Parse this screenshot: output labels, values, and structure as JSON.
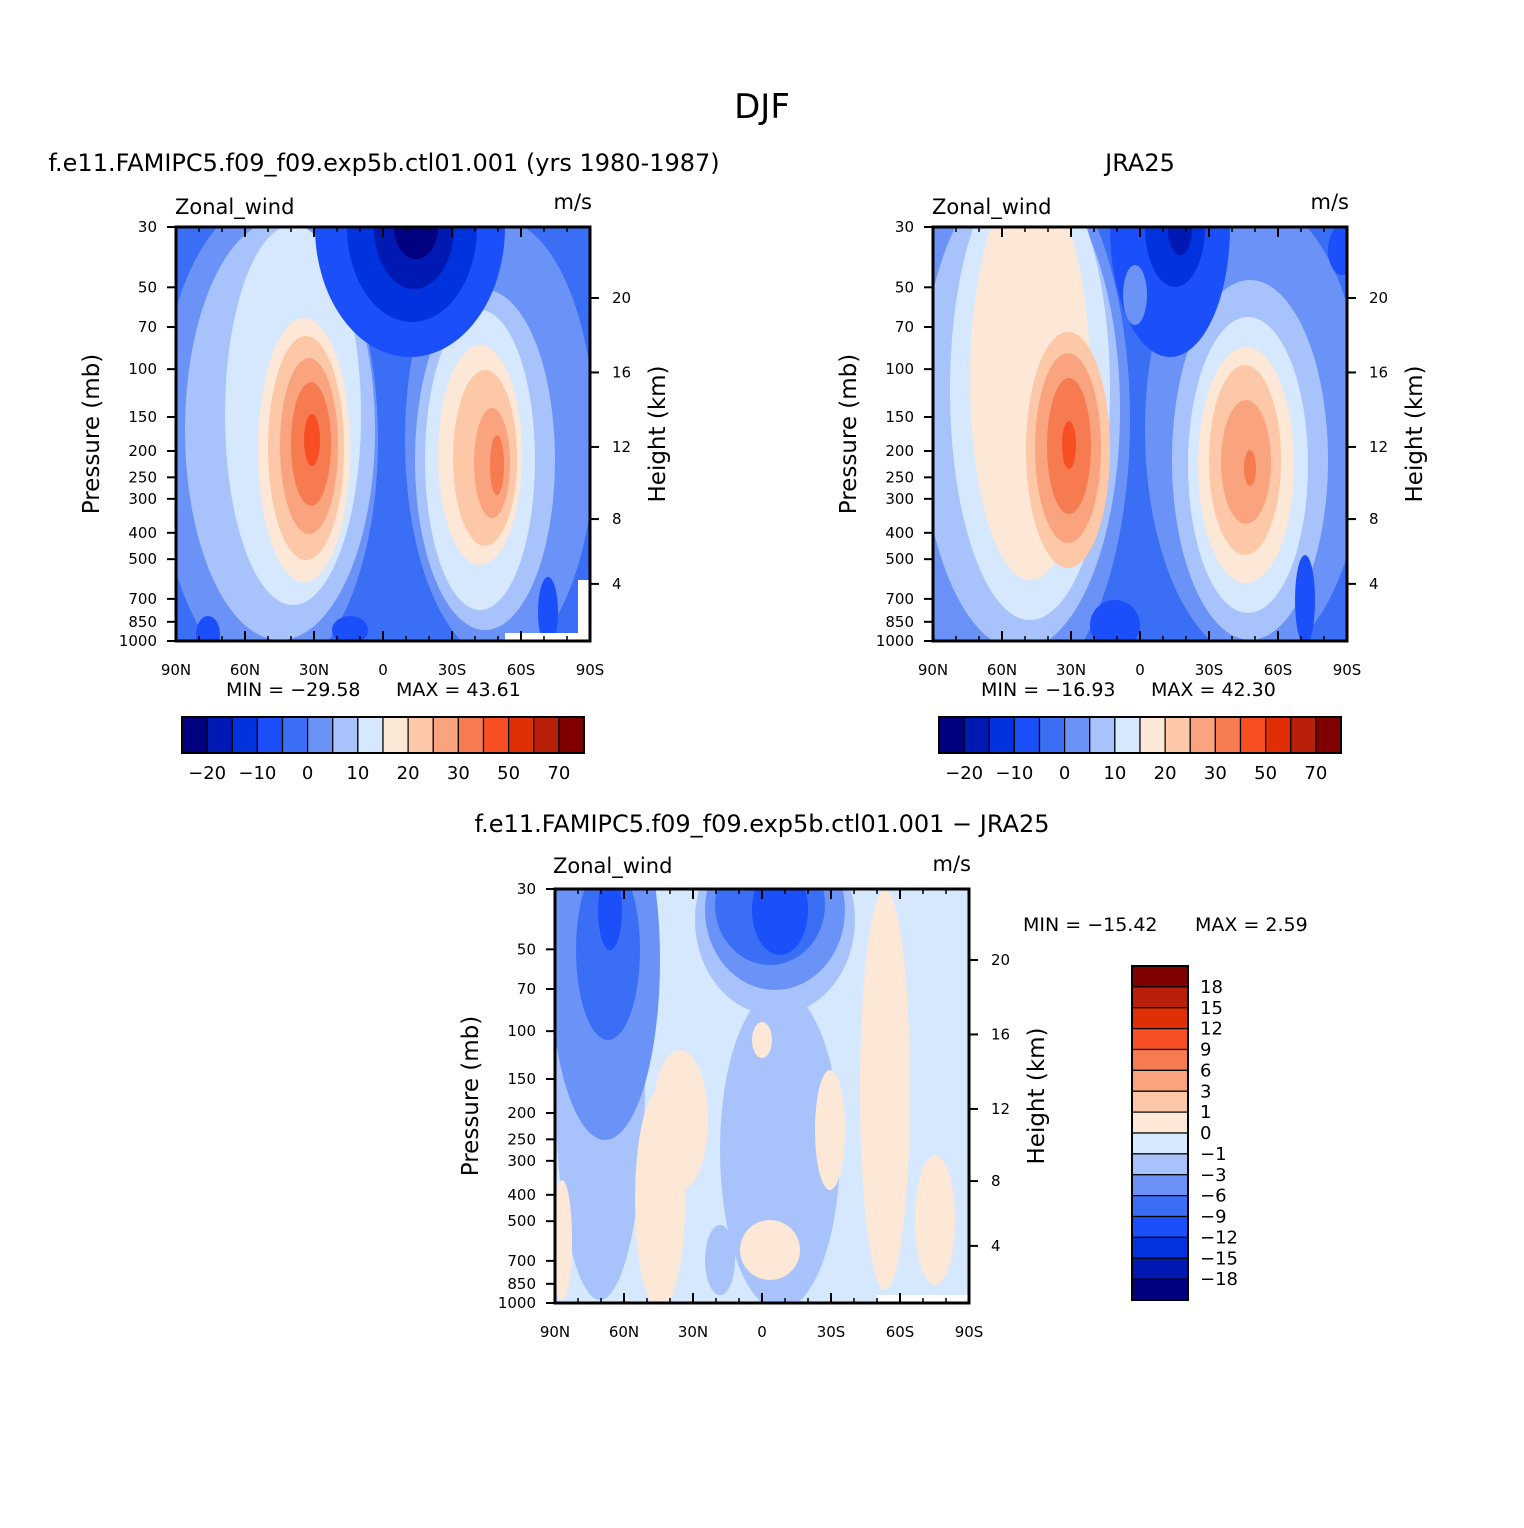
{
  "figure": {
    "title": "DJF"
  },
  "colors": {
    "main": [
      "#000080",
      "#0019b3",
      "#0033dd",
      "#1a4ffa",
      "#3a6ef5",
      "#6b93f7",
      "#a8c3fb",
      "#d6e8fd",
      "#fde7d6",
      "#fcc8a8",
      "#f9a47e",
      "#f77b51",
      "#f74e24",
      "#e02f06",
      "#b8200a",
      "#800000"
    ],
    "diff": [
      "#000080",
      "#0019b3",
      "#0033dd",
      "#1a4ffa",
      "#3a6ef5",
      "#6b93f7",
      "#a8c3fb",
      "#d6e8fd",
      "#fde7d6",
      "#fcc8a8",
      "#f9a47e",
      "#f77b51",
      "#f74e24",
      "#e02f06",
      "#b8200a",
      "#800000"
    ]
  },
  "chart_data": [
    {
      "type": "heatmap",
      "title": "f.e11.FAMIPC5.f09_f09.exp5b.ctl01.001 (yrs 1980-1987)",
      "left_label": "Zonal_wind",
      "units": "m/s",
      "ylabel": "Pressure (mb)",
      "ylabel_right": "Height (km)",
      "x_ticks": [
        "90N",
        "60N",
        "30N",
        "0",
        "30S",
        "60S",
        "90S"
      ],
      "y_ticks": [
        "30",
        "50",
        "70",
        "100",
        "150",
        "200",
        "250",
        "300",
        "400",
        "500",
        "700",
        "850",
        "1000"
      ],
      "y_ticks_right": [
        "20",
        "16",
        "12",
        "8",
        "4"
      ],
      "min_text": "MIN = −29.58",
      "max_text": "MAX = 43.61",
      "colorbar_labels": [
        "−20",
        "−10",
        "0",
        "10",
        "20",
        "30",
        "50",
        "70"
      ],
      "jets": [
        {
          "lat": 30,
          "p": 200,
          "max": 43.61
        },
        {
          "lat": -45,
          "p": 250,
          "max": 35
        },
        {
          "lat": -15,
          "p": 30,
          "min": -29.58
        }
      ]
    },
    {
      "type": "heatmap",
      "title": "JRA25",
      "left_label": "Zonal_wind",
      "units": "m/s",
      "ylabel": "Pressure (mb)",
      "ylabel_right": "Height (km)",
      "x_ticks": [
        "90N",
        "60N",
        "30N",
        "0",
        "30S",
        "60S",
        "90S"
      ],
      "y_ticks": [
        "30",
        "50",
        "70",
        "100",
        "150",
        "200",
        "250",
        "300",
        "400",
        "500",
        "700",
        "850",
        "1000"
      ],
      "y_ticks_right": [
        "20",
        "16",
        "12",
        "8",
        "4"
      ],
      "min_text": "MIN = −16.93",
      "max_text": "MAX = 42.30",
      "colorbar_labels": [
        "−20",
        "−10",
        "0",
        "10",
        "20",
        "30",
        "50",
        "70"
      ],
      "jets": [
        {
          "lat": 30,
          "p": 200,
          "max": 42.3
        },
        {
          "lat": -45,
          "p": 250,
          "max": 37
        },
        {
          "lat": -15,
          "p": 30,
          "min": -16.93
        }
      ]
    },
    {
      "type": "heatmap",
      "title": "f.e11.FAMIPC5.f09_f09.exp5b.ctl01.001 − JRA25",
      "left_label": "Zonal_wind",
      "units": "m/s",
      "ylabel": "Pressure (mb)",
      "ylabel_right": "Height (km)",
      "x_ticks": [
        "90N",
        "60N",
        "30N",
        "0",
        "30S",
        "60S",
        "90S"
      ],
      "y_ticks": [
        "30",
        "50",
        "70",
        "100",
        "150",
        "200",
        "250",
        "300",
        "400",
        "500",
        "700",
        "850",
        "1000"
      ],
      "y_ticks_right": [
        "20",
        "16",
        "12",
        "8",
        "4"
      ],
      "min_text": "MIN = −15.42",
      "max_text": "MAX = 2.59",
      "colorbar_labels": [
        "18",
        "15",
        "12",
        "9",
        "6",
        "3",
        "1",
        "0",
        "−1",
        "−3",
        "−6",
        "−9",
        "−12",
        "−15",
        "−18"
      ]
    }
  ]
}
